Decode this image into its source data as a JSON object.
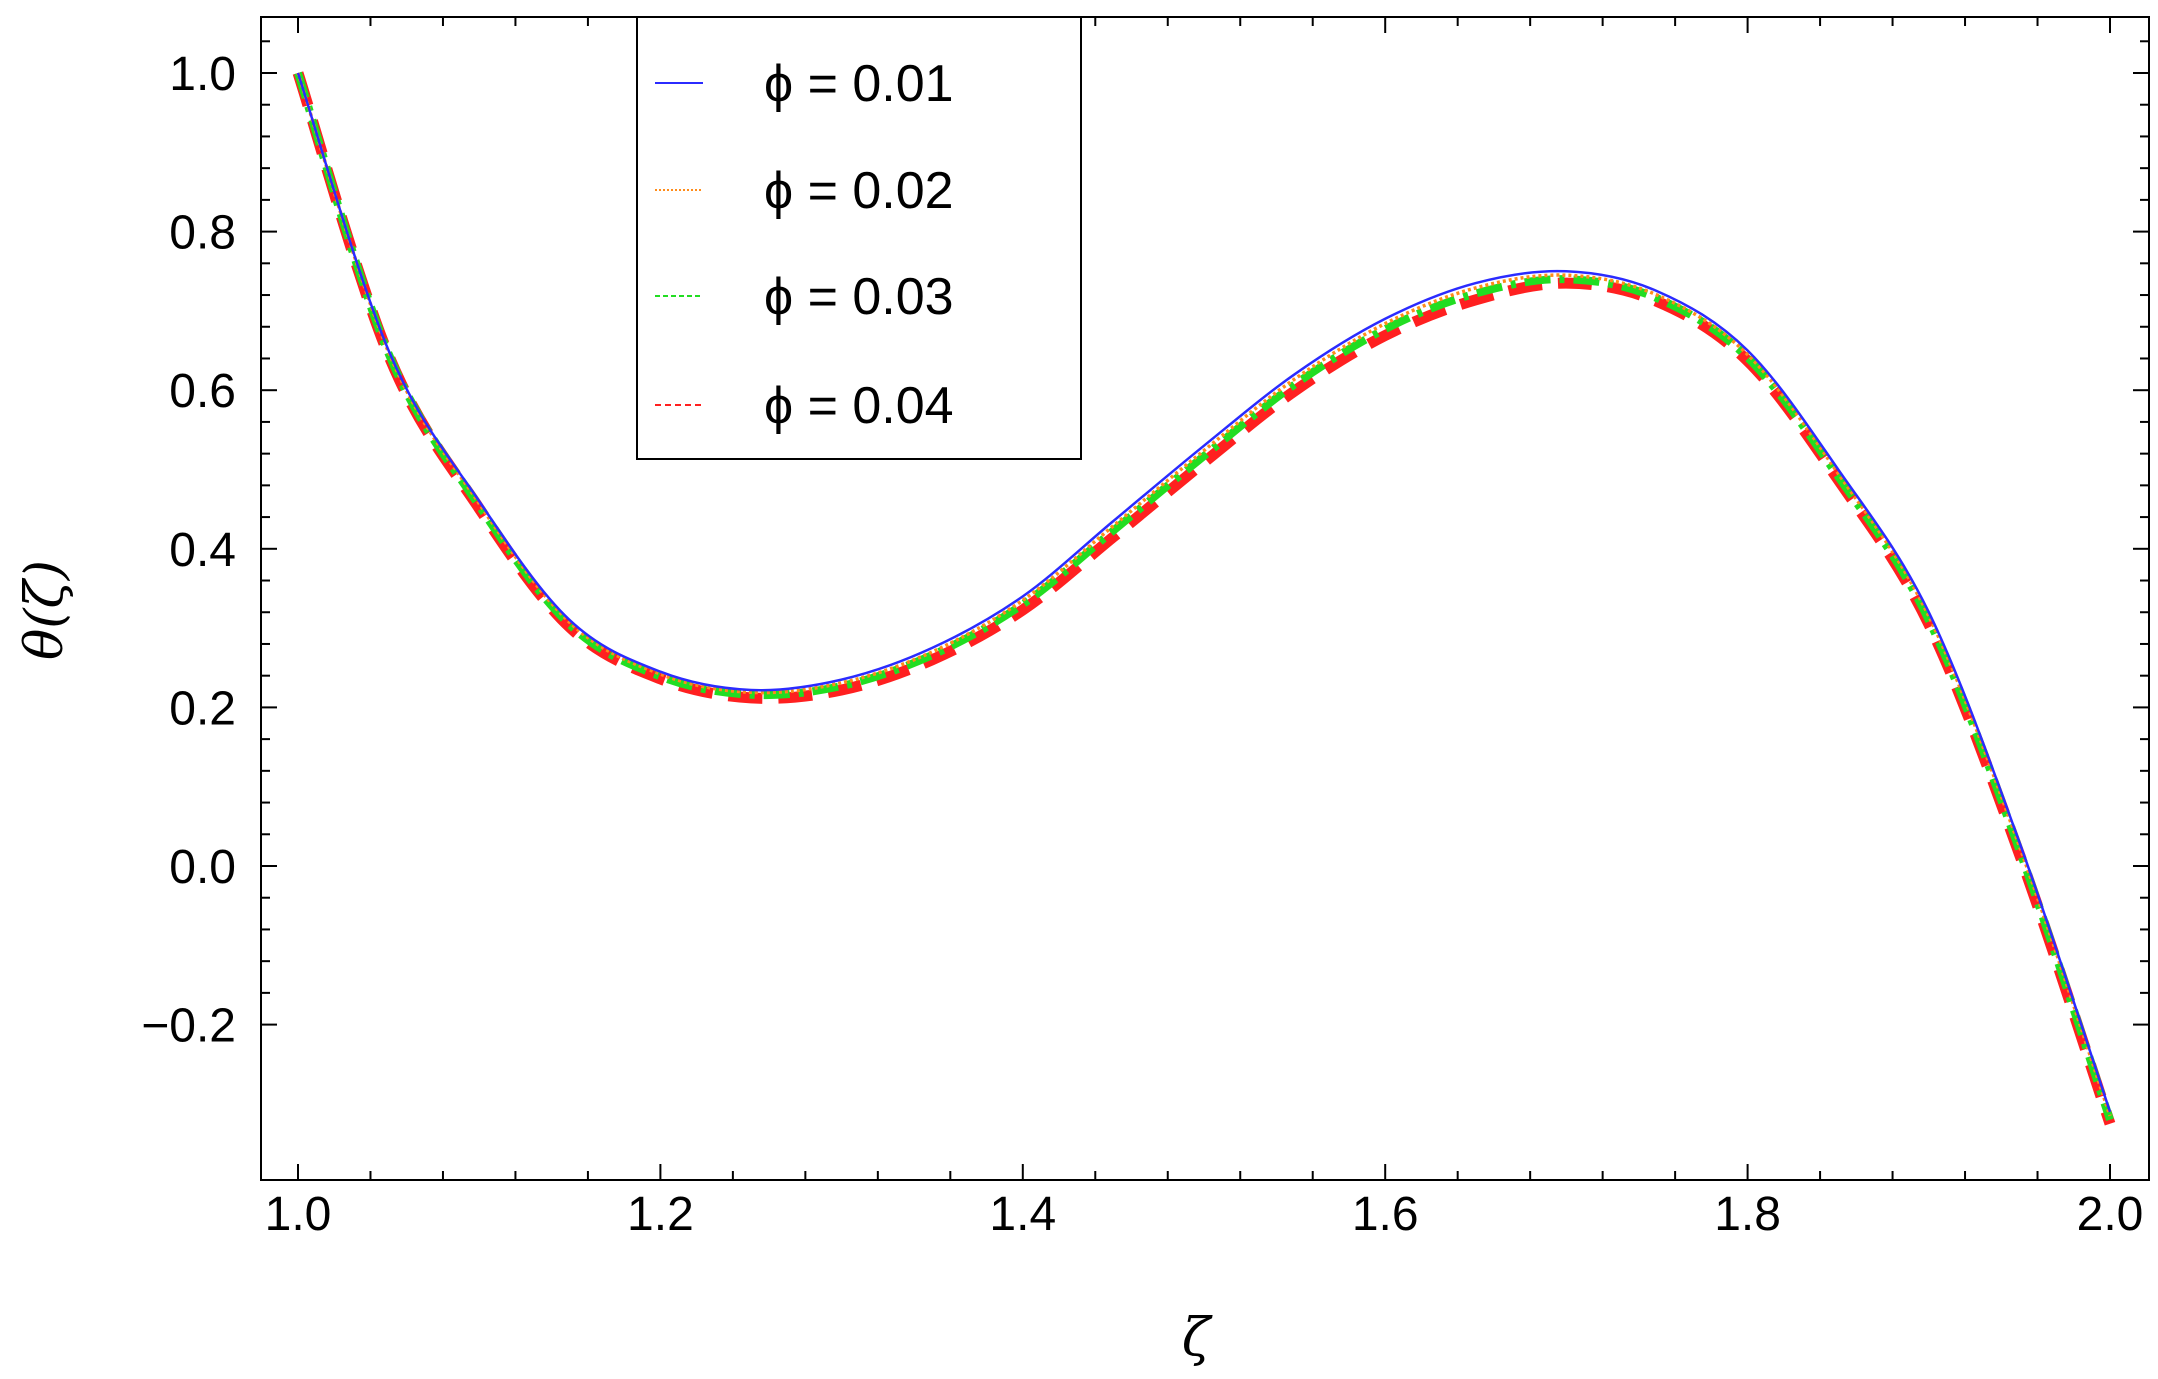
{
  "chart_data": {
    "type": "line",
    "title": "",
    "xlabel": "ζ",
    "ylabel": "θ(ζ)",
    "xlim": [
      0.96,
      2.04
    ],
    "ylim": [
      -0.4,
      1.07
    ],
    "x_ticks": [
      "1.0",
      "1.2",
      "1.4",
      "1.6",
      "1.8",
      "2.0"
    ],
    "y_ticks": [
      "−0.2",
      "0.0",
      "0.2",
      "0.4",
      "0.6",
      "0.8",
      "1.0"
    ],
    "x_tick_values": [
      1.0,
      1.2,
      1.4,
      1.6,
      1.8,
      2.0
    ],
    "y_tick_values": [
      -0.2,
      0.0,
      0.2,
      0.4,
      0.6,
      0.8,
      1.0
    ],
    "legend_position": "top-center",
    "x": [
      1.0,
      1.05,
      1.1,
      1.15,
      1.2,
      1.25,
      1.3,
      1.35,
      1.4,
      1.45,
      1.5,
      1.55,
      1.6,
      1.65,
      1.7,
      1.75,
      1.8,
      1.85,
      1.9,
      1.95,
      2.0
    ],
    "series": [
      {
        "name": "ϕ = 0.01",
        "color": "#2b2bff",
        "style": "solid",
        "values": [
          1.0,
          0.65,
          0.46,
          0.31,
          0.245,
          0.222,
          0.235,
          0.275,
          0.34,
          0.435,
          0.53,
          0.62,
          0.69,
          0.735,
          0.75,
          0.725,
          0.65,
          0.5,
          0.32,
          0.03,
          -0.31
        ]
      },
      {
        "name": "ϕ = 0.02",
        "color": "#ff8c1a",
        "style": "dotted",
        "values": [
          1.0,
          0.648,
          0.457,
          0.307,
          0.242,
          0.219,
          0.231,
          0.27,
          0.335,
          0.429,
          0.524,
          0.614,
          0.684,
          0.729,
          0.745,
          0.72,
          0.645,
          0.495,
          0.315,
          0.025,
          -0.315
        ]
      },
      {
        "name": "ϕ = 0.03",
        "color": "#22dd22",
        "style": "dashdot",
        "values": [
          1.0,
          0.646,
          0.454,
          0.304,
          0.239,
          0.216,
          0.227,
          0.266,
          0.33,
          0.423,
          0.517,
          0.607,
          0.677,
          0.722,
          0.74,
          0.716,
          0.641,
          0.491,
          0.31,
          0.02,
          -0.32
        ]
      },
      {
        "name": "ϕ = 0.04",
        "color": "#ff2020",
        "style": "dashed",
        "values": [
          1.0,
          0.644,
          0.451,
          0.301,
          0.236,
          0.212,
          0.222,
          0.26,
          0.323,
          0.415,
          0.509,
          0.599,
          0.669,
          0.714,
          0.735,
          0.712,
          0.637,
          0.487,
          0.305,
          0.015,
          -0.325
        ]
      }
    ]
  }
}
